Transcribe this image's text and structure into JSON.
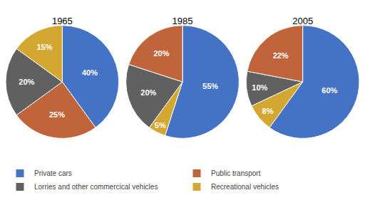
{
  "chart_data": [
    {
      "type": "pie",
      "title": "1965",
      "categories": [
        "Private cars",
        "Public transport",
        "Lorries and other commercical vehicles",
        "Recreational vehicles"
      ],
      "values": [
        40,
        25,
        20,
        15
      ],
      "value_labels": [
        "40%",
        "25%",
        "20%",
        "15%"
      ],
      "colors": [
        "#4472C4",
        "#C0643C",
        "#606060",
        "#D4A830"
      ],
      "data_labels": true,
      "legend": "lower left"
    },
    {
      "type": "pie",
      "title": "1985",
      "categories": [
        "Private cars",
        "Recreational vehicles",
        "Lorries and other commercical vehicles",
        "Public transport"
      ],
      "values": [
        55,
        5,
        20,
        20
      ],
      "value_labels": [
        "55%",
        "5%",
        "20%",
        "20%"
      ],
      "colors": [
        "#4472C4",
        "#D4A830",
        "#606060",
        "#C0643C"
      ],
      "data_labels": true,
      "legend": "lower left"
    },
    {
      "type": "pie",
      "title": "2005",
      "categories": [
        "Private cars",
        "Recreational vehicles",
        "Lorries and other commercical vehicles",
        "Public transport"
      ],
      "values": [
        60,
        8,
        10,
        22
      ],
      "value_labels": [
        "60%",
        "8%",
        "10%",
        "22%"
      ],
      "colors": [
        "#4472C4",
        "#D4A830",
        "#606060",
        "#C0643C"
      ],
      "data_labels": true,
      "legend": "lower left"
    }
  ]
}
